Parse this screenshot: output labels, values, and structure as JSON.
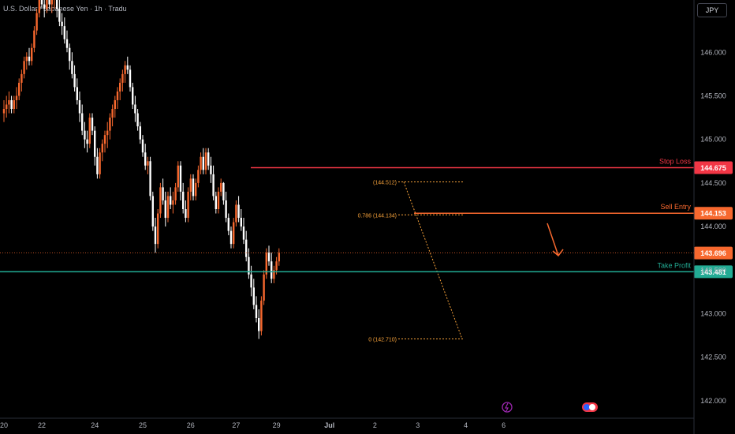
{
  "header": {
    "title": "U.S. Dollar / Japanese Yen · 1h · Tradu",
    "currency_button": "JPY"
  },
  "levels": {
    "stop_loss": {
      "label": "Stop Loss",
      "price": 144.675,
      "price_label": "144.675",
      "color": "#f23645"
    },
    "sell_entry": {
      "label": "Sell Entry",
      "price": 144.153,
      "price_label": "144.153",
      "color": "#f7682e"
    },
    "current": {
      "price": 143.696,
      "price_label": "143.696",
      "color": "#f7682e"
    },
    "take_profit": {
      "label": "Take Profit",
      "price": 143.481,
      "price_label": "143.481",
      "color": "#22ab94"
    }
  },
  "fib": {
    "color": "#f7a23a",
    "labels": [
      {
        "text": "(144.512)",
        "price": 144.512
      },
      {
        "text": "0.786 (144.134)",
        "price": 144.134
      },
      {
        "text": "0 (142.710)",
        "price": 142.71
      }
    ]
  },
  "chart_data": {
    "type": "candlestick",
    "title": "U.S. Dollar / Japanese Yen · 1h · Tradu",
    "ylim": [
      141.8,
      146.6
    ],
    "y_ticks": [
      "146.000",
      "145.500",
      "145.000",
      "144.500",
      "144.000",
      "143.500",
      "143.000",
      "142.500",
      "142.000"
    ],
    "x_ticks": [
      "20",
      "22",
      "24",
      "25",
      "26",
      "27",
      "29",
      "Jul",
      "2",
      "3",
      "4",
      "6"
    ],
    "x_tick_index": [
      0,
      15,
      36,
      55,
      74,
      92,
      108,
      129,
      147,
      164,
      183,
      198
    ],
    "up_color": "#f7682e",
    "down_color": "#ffffff",
    "candles": [
      [
        145.3,
        145.45,
        145.2,
        145.35
      ],
      [
        145.35,
        145.5,
        145.25,
        145.4
      ],
      [
        145.4,
        145.55,
        145.3,
        145.45
      ],
      [
        145.45,
        145.5,
        145.3,
        145.35
      ],
      [
        145.35,
        145.5,
        145.3,
        145.45
      ],
      [
        145.45,
        145.6,
        145.35,
        145.5
      ],
      [
        145.5,
        145.7,
        145.45,
        145.65
      ],
      [
        145.65,
        145.8,
        145.55,
        145.75
      ],
      [
        145.75,
        145.95,
        145.7,
        145.9
      ],
      [
        145.9,
        146.0,
        145.8,
        145.95
      ],
      [
        145.95,
        146.05,
        145.85,
        145.9
      ],
      [
        145.9,
        146.1,
        145.85,
        146.05
      ],
      [
        146.05,
        146.3,
        146.0,
        146.25
      ],
      [
        146.25,
        146.5,
        146.2,
        146.45
      ],
      [
        146.45,
        146.7,
        146.4,
        146.6
      ],
      [
        146.6,
        146.7,
        146.5,
        146.55
      ],
      [
        146.55,
        146.7,
        146.4,
        146.5
      ],
      [
        146.5,
        146.7,
        146.45,
        146.6
      ],
      [
        146.6,
        146.7,
        146.5,
        146.55
      ],
      [
        146.55,
        146.7,
        146.45,
        146.6
      ],
      [
        146.6,
        146.7,
        146.5,
        146.65
      ],
      [
        146.65,
        146.7,
        146.4,
        146.5
      ],
      [
        146.5,
        146.6,
        146.3,
        146.35
      ],
      [
        146.35,
        146.45,
        146.2,
        146.3
      ],
      [
        146.3,
        146.4,
        146.1,
        146.15
      ],
      [
        146.15,
        146.25,
        146.0,
        146.05
      ],
      [
        146.05,
        146.1,
        145.8,
        145.9
      ],
      [
        145.9,
        146.0,
        145.7,
        145.75
      ],
      [
        145.75,
        145.85,
        145.55,
        145.6
      ],
      [
        145.6,
        145.7,
        145.4,
        145.45
      ],
      [
        145.45,
        145.55,
        145.2,
        145.3
      ],
      [
        145.3,
        145.4,
        145.05,
        145.1
      ],
      [
        145.1,
        145.2,
        144.9,
        145.0
      ],
      [
        145.0,
        145.1,
        144.85,
        144.95
      ],
      [
        144.95,
        145.3,
        144.9,
        145.25
      ],
      [
        145.25,
        145.3,
        145.05,
        145.1
      ],
      [
        145.1,
        145.15,
        144.7,
        144.8
      ],
      [
        144.8,
        144.9,
        144.55,
        144.6
      ],
      [
        144.6,
        144.9,
        144.55,
        144.85
      ],
      [
        144.85,
        145.0,
        144.75,
        144.95
      ],
      [
        144.95,
        145.1,
        144.85,
        145.05
      ],
      [
        145.05,
        145.2,
        144.9,
        145.1
      ],
      [
        145.1,
        145.3,
        145.0,
        145.25
      ],
      [
        145.25,
        145.4,
        145.15,
        145.35
      ],
      [
        145.35,
        145.5,
        145.25,
        145.45
      ],
      [
        145.45,
        145.6,
        145.35,
        145.55
      ],
      [
        145.55,
        145.7,
        145.45,
        145.65
      ],
      [
        145.65,
        145.8,
        145.55,
        145.75
      ],
      [
        145.75,
        145.9,
        145.65,
        145.85
      ],
      [
        145.85,
        145.95,
        145.75,
        145.8
      ],
      [
        145.8,
        145.85,
        145.55,
        145.6
      ],
      [
        145.6,
        145.65,
        145.35,
        145.4
      ],
      [
        145.4,
        145.5,
        145.2,
        145.3
      ],
      [
        145.3,
        145.35,
        145.1,
        145.15
      ],
      [
        145.15,
        145.2,
        144.95,
        145.0
      ],
      [
        145.0,
        145.05,
        144.8,
        144.85
      ],
      [
        144.85,
        144.95,
        144.65,
        144.7
      ],
      [
        144.7,
        144.8,
        144.6,
        144.75
      ],
      [
        144.75,
        144.8,
        144.3,
        144.35
      ],
      [
        144.35,
        144.4,
        143.95,
        144.0
      ],
      [
        144.0,
        144.1,
        143.7,
        143.8
      ],
      [
        143.8,
        144.2,
        143.75,
        144.15
      ],
      [
        144.15,
        144.5,
        144.1,
        144.45
      ],
      [
        144.45,
        144.55,
        144.25,
        144.3
      ],
      [
        144.3,
        144.4,
        144.0,
        144.1
      ],
      [
        144.1,
        144.4,
        144.05,
        144.35
      ],
      [
        144.35,
        144.45,
        144.2,
        144.25
      ],
      [
        144.25,
        144.4,
        144.15,
        144.3
      ],
      [
        144.3,
        144.5,
        144.25,
        144.45
      ],
      [
        144.45,
        144.75,
        144.4,
        144.7
      ],
      [
        144.7,
        144.75,
        144.3,
        144.4
      ],
      [
        144.4,
        144.5,
        144.15,
        144.2
      ],
      [
        144.2,
        144.3,
        144.05,
        144.1
      ],
      [
        144.1,
        144.45,
        144.05,
        144.4
      ],
      [
        144.4,
        144.6,
        144.3,
        144.55
      ],
      [
        144.55,
        144.6,
        144.3,
        144.35
      ],
      [
        144.35,
        144.55,
        144.3,
        144.5
      ],
      [
        144.5,
        144.7,
        144.45,
        144.65
      ],
      [
        144.65,
        144.85,
        144.6,
        144.8
      ],
      [
        144.8,
        144.9,
        144.6,
        144.65
      ],
      [
        144.65,
        144.9,
        144.6,
        144.85
      ],
      [
        144.85,
        144.9,
        144.65,
        144.7
      ],
      [
        144.7,
        144.8,
        144.5,
        144.6
      ],
      [
        144.6,
        144.7,
        144.3,
        144.35
      ],
      [
        144.35,
        144.4,
        144.15,
        144.2
      ],
      [
        144.2,
        144.45,
        144.15,
        144.4
      ],
      [
        144.4,
        144.55,
        144.35,
        144.5
      ],
      [
        144.5,
        144.51,
        144.25,
        144.3
      ],
      [
        144.3,
        144.4,
        144.05,
        144.1
      ],
      [
        144.1,
        144.15,
        143.9,
        143.95
      ],
      [
        143.95,
        144.0,
        143.75,
        143.8
      ],
      [
        143.8,
        144.1,
        143.75,
        144.05
      ],
      [
        144.05,
        144.3,
        144.0,
        144.25
      ],
      [
        144.25,
        144.35,
        144.05,
        144.1
      ],
      [
        144.1,
        144.2,
        143.95,
        144.0
      ],
      [
        144.0,
        144.1,
        143.8,
        143.85
      ],
      [
        143.85,
        143.95,
        143.6,
        143.65
      ],
      [
        143.65,
        143.75,
        143.4,
        143.45
      ],
      [
        143.45,
        143.55,
        143.2,
        143.3
      ],
      [
        143.3,
        143.4,
        143.05,
        143.1
      ],
      [
        143.1,
        143.2,
        142.9,
        142.95
      ],
      [
        142.95,
        143.05,
        142.71,
        142.8
      ],
      [
        142.8,
        143.2,
        142.75,
        143.15
      ],
      [
        143.15,
        143.5,
        143.1,
        143.45
      ],
      [
        143.45,
        143.75,
        143.4,
        143.7
      ],
      [
        143.7,
        143.78,
        143.55,
        143.6
      ],
      [
        143.6,
        143.7,
        143.35,
        143.4
      ],
      [
        143.4,
        143.55,
        143.35,
        143.5
      ],
      [
        143.5,
        143.65,
        143.45,
        143.6
      ],
      [
        143.6,
        143.75,
        143.55,
        143.7
      ]
    ]
  }
}
